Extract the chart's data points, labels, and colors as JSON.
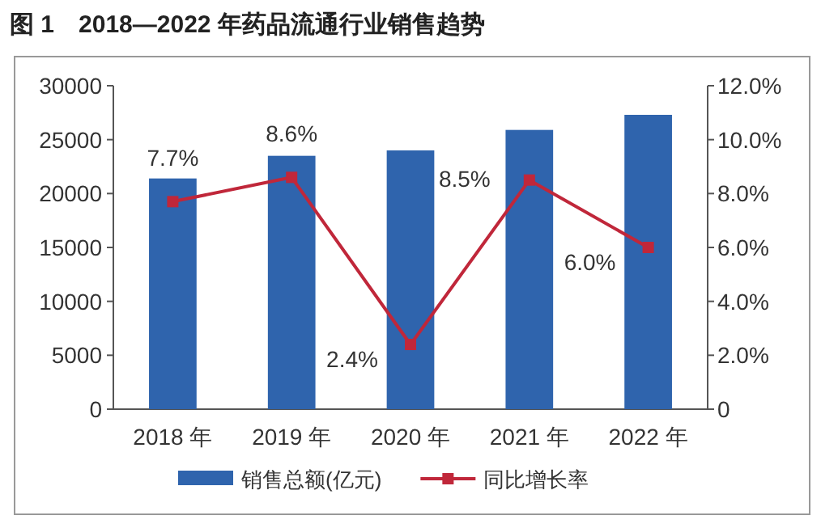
{
  "chart_data": {
    "type": "bar",
    "title": "图 1　2018—2022 年药品流通行业销售趋势",
    "categories": [
      "2018 年",
      "2019 年",
      "2020 年",
      "2021 年",
      "2022 年"
    ],
    "series": [
      {
        "name": "销售总额(亿元)",
        "color": "#2f64ad",
        "values": [
          21400,
          23500,
          24000,
          25900,
          27300
        ]
      },
      {
        "name": "同比增长率",
        "type": "line",
        "axis": "y2",
        "color": "#c0273a",
        "marker": "square",
        "values": [
          7.7,
          8.6,
          2.4,
          8.5,
          6.0
        ],
        "value_labels": [
          "7.7%",
          "8.6%",
          "2.4%",
          "8.5%",
          "6.0%"
        ]
      }
    ],
    "ylim": [
      0,
      30000
    ],
    "yticks": [
      0,
      5000,
      10000,
      15000,
      20000,
      25000,
      30000
    ],
    "y2lim": [
      0,
      12
    ],
    "y2ticks": [
      0,
      {
        "value": 2,
        "label": "2.0%"
      },
      {
        "value": 4,
        "label": "4.0%"
      },
      {
        "value": 6,
        "label": "6.0%"
      },
      {
        "value": 8,
        "label": "8.0%"
      },
      {
        "value": 10,
        "label": "10.0%"
      },
      {
        "value": 12,
        "label": "12.0%"
      }
    ],
    "legend": "bottom",
    "grid": false
  }
}
